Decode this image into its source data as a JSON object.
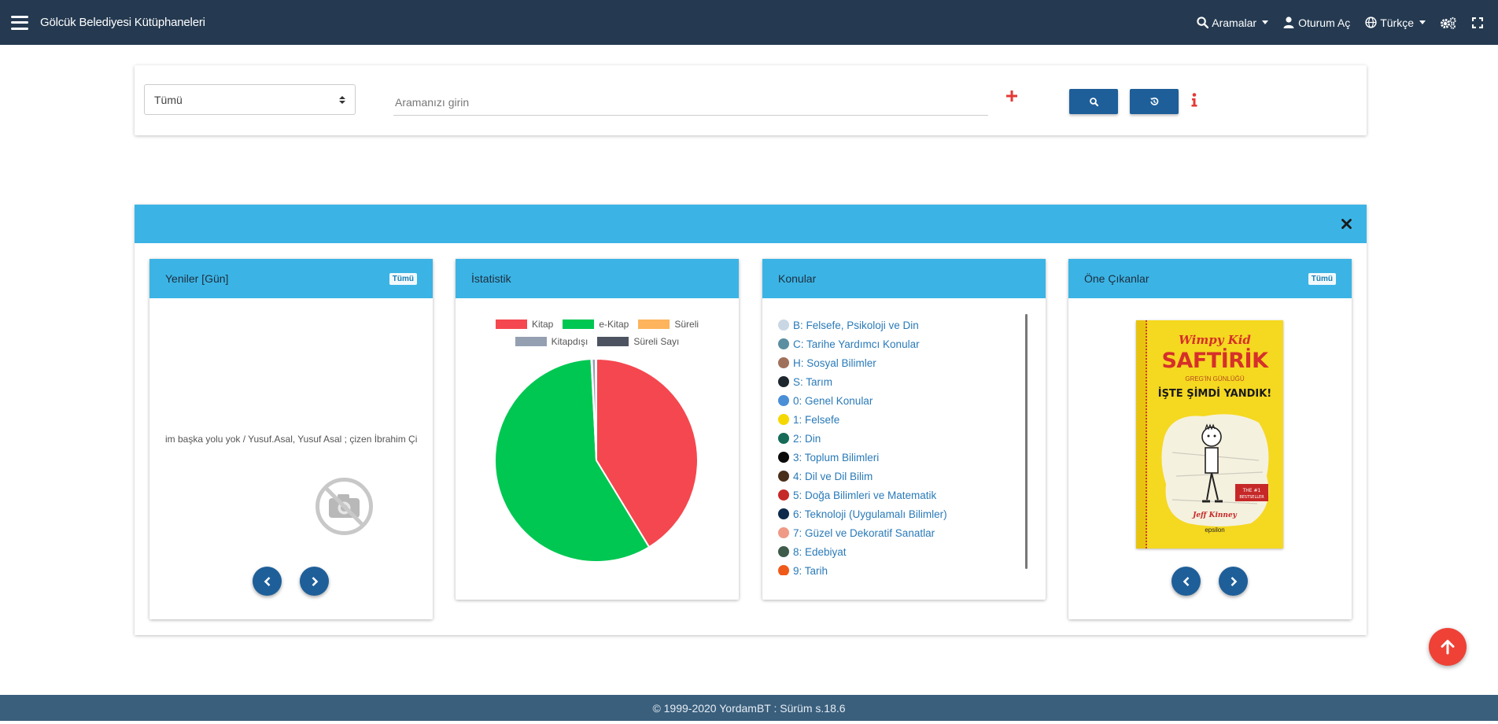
{
  "navbar": {
    "brand": "Gölcük Belediyesi Kütüphaneleri",
    "searches_label": "Aramalar",
    "login_label": "Oturum Aç",
    "language_label": "Türkçe"
  },
  "search": {
    "scope_selected": "Tümü",
    "placeholder": "Aramanızı girin",
    "value": ""
  },
  "cards": {
    "new": {
      "title": "Yeniler [Gün]",
      "badge": "Tümü",
      "item_text": "im başka yolu yok / Yusuf.Asal, Yusuf Asal ; çizen İbrahim Çiftçi ;"
    },
    "stats": {
      "title": "İstatistik"
    },
    "topics": {
      "title": "Konular",
      "items": [
        {
          "label": "B: Felsefe, Psikoloji ve Din",
          "color": "#c9d6e3"
        },
        {
          "label": "C: Tarihe Yardımcı Konular",
          "color": "#5b8ea1"
        },
        {
          "label": "H: Sosyal Bilimler",
          "color": "#a0715a"
        },
        {
          "label": "S: Tarım",
          "color": "#1e262d"
        },
        {
          "label": "0: Genel Konular",
          "color": "#4a8ed6"
        },
        {
          "label": "1: Felsefe",
          "color": "#f5d800"
        },
        {
          "label": "2: Din",
          "color": "#156b57"
        },
        {
          "label": "3: Toplum Bilimleri",
          "color": "#0a0a0a"
        },
        {
          "label": "4: Dil ve Dil Bilim",
          "color": "#4a2f1a"
        },
        {
          "label": "5: Doğa Bilimleri ve Matematik",
          "color": "#c62828"
        },
        {
          "label": "6: Teknoloji (Uygulamalı Bilimler)",
          "color": "#0d2a4d"
        },
        {
          "label": "7: Güzel ve Dekoratif Sanatlar",
          "color": "#ee9a86"
        },
        {
          "label": "8: Edebiyat",
          "color": "#3f5b4a"
        },
        {
          "label": "9: Tarih",
          "color": "#ef5a1a"
        }
      ]
    },
    "featured": {
      "title": "Öne Çıkanlar",
      "badge": "Tümü",
      "book": {
        "series": "Wimpy Kid",
        "title": "SAFTİRİK",
        "subtitle": "GREG'İN GÜNLÜĞÜ",
        "tagline": "İŞTE ŞİMDİ YANDIK!",
        "author": "Jeff Kinney",
        "publisher": "epsilon"
      }
    }
  },
  "chart_data": {
    "type": "pie",
    "title": "",
    "legend_position": "top",
    "categories": [
      "Kitap",
      "e-Kitap",
      "Süreli",
      "Kitapdışı",
      "Süreli Sayı"
    ],
    "values": [
      41.3,
      57.9,
      0.1,
      0.6,
      0.1
    ],
    "colors": [
      "#f5474f",
      "#00c752",
      "#fdb45c",
      "#949fb1",
      "#4d5360"
    ]
  },
  "footer": {
    "text": "© 1999-2020 YordamBT : Sürüm s.18.6"
  }
}
